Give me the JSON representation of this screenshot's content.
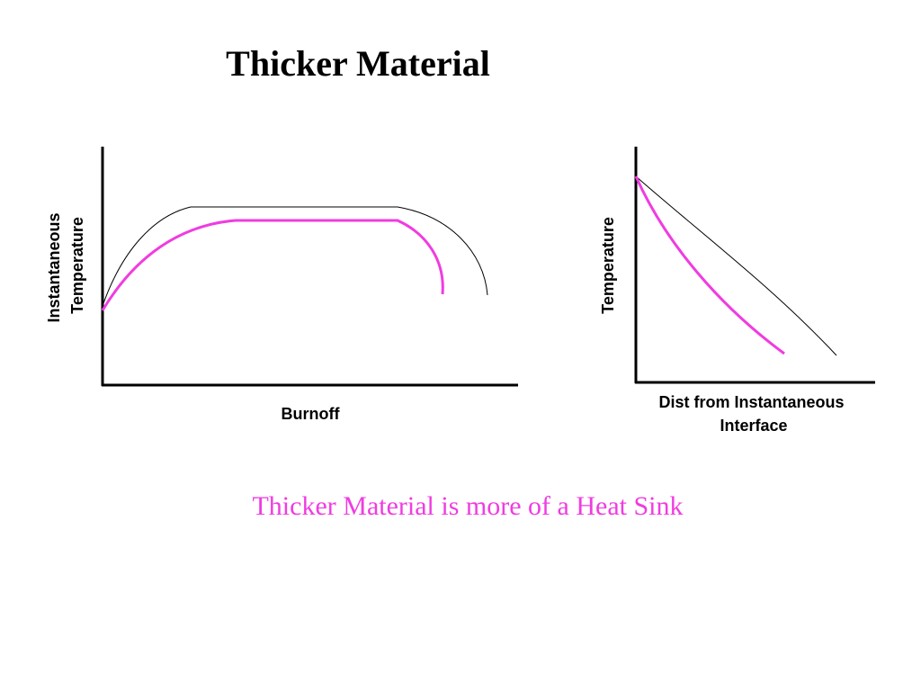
{
  "title": "Thicker Material",
  "diagrams": [
    {
      "y_label": [
        "Instantaneous",
        "Temperature"
      ],
      "x_label": [
        "Burnoff"
      ]
    },
    {
      "y_label": [
        "Temperature"
      ],
      "x_label": [
        "Dist from Instantaneous",
        "Interface"
      ]
    }
  ],
  "caption": "Thicker Material is more of a Heat Sink"
}
